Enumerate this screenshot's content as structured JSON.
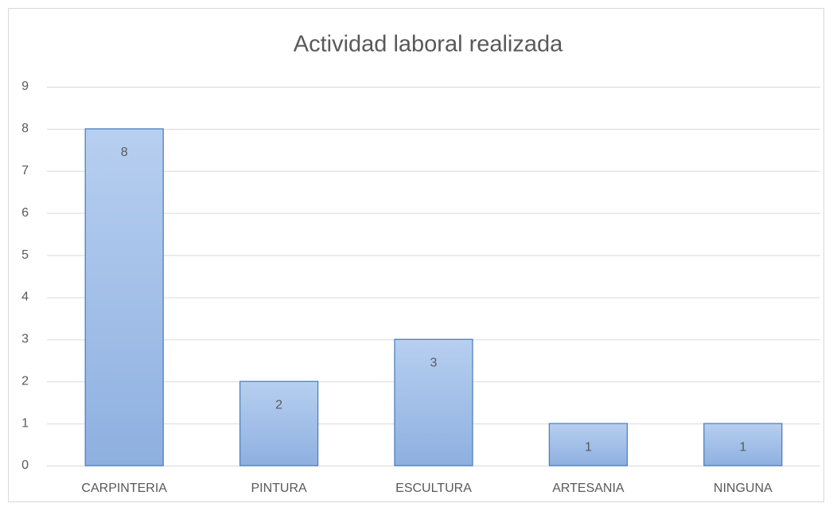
{
  "chart_data": {
    "type": "bar",
    "title": "Actividad laboral realizada",
    "categories": [
      "CARPINTERIA",
      "PINTURA",
      "ESCULTURA",
      "ARTESANIA",
      "NINGUNA"
    ],
    "values": [
      8,
      2,
      3,
      1,
      1
    ],
    "color": "#4f81bd",
    "ylim": [
      0,
      9
    ],
    "yticks": [
      0,
      1,
      2,
      3,
      4,
      5,
      6,
      7,
      8,
      9
    ],
    "grid": true
  }
}
